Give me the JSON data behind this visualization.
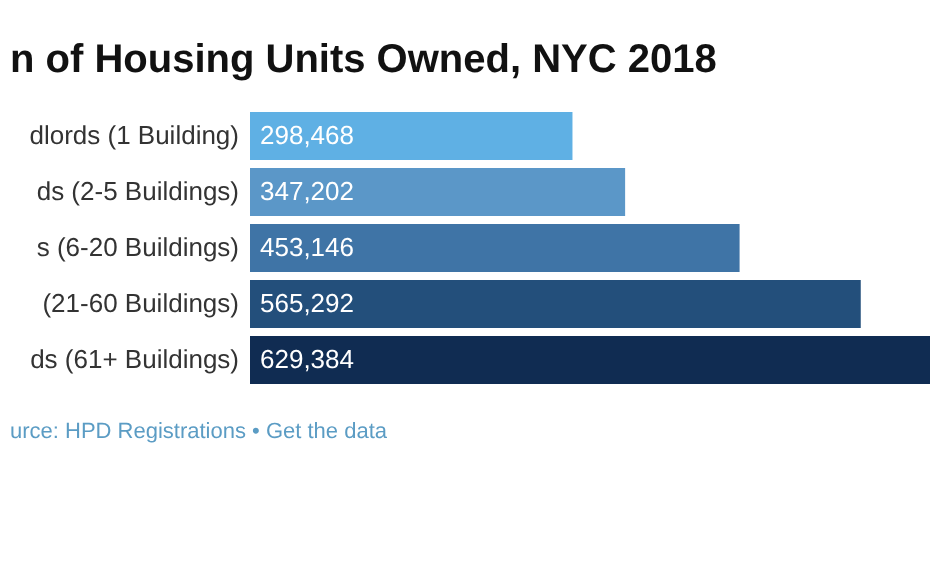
{
  "chart_data": {
    "type": "bar",
    "orientation": "horizontal",
    "title": "n of Housing Units Owned, NYC 2018",
    "categories": [
      "dlords (1 Building)",
      "ds (2-5 Buildings)",
      "s (6-20 Buildings)",
      "(21-60 Buildings)",
      "ds (61+ Buildings)"
    ],
    "values": [
      298468,
      347202,
      453146,
      565292,
      629384
    ],
    "colors": [
      "#5fb0e4",
      "#5b97c8",
      "#3f74a6",
      "#234f7b",
      "#102c52"
    ],
    "value_labels": [
      "298,468",
      "347,202",
      "453,146",
      "565,292",
      "629,384"
    ],
    "annotations": [
      "urce: HPD Registrations • Get the data"
    ]
  }
}
